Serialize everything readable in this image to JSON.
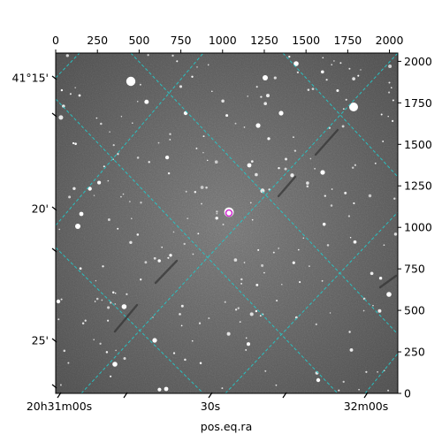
{
  "chart_data": {
    "type": "image",
    "title": "",
    "xlabel": "pos.eq.ra",
    "ylabel": "",
    "pixel_axes": {
      "x_ticks": [
        "0",
        "250",
        "500",
        "750",
        "1000",
        "1250",
        "1500",
        "1750",
        "2000"
      ],
      "y_ticks": [
        "0",
        "250",
        "500",
        "750",
        "1000",
        "1250",
        "1500",
        "1750",
        "2000"
      ],
      "xlim": [
        0,
        2050
      ],
      "ylim": [
        0,
        2050
      ]
    },
    "world_axes": {
      "ra_ticks": [
        "20h31m00s",
        "30s",
        "32m00s"
      ],
      "dec_ticks": [
        "41°15'",
        "20'",
        "25'"
      ]
    },
    "grid": true,
    "grid_color": "#26c6c6",
    "marker_color": "#d030d0",
    "image_style": "grayscale star field"
  }
}
